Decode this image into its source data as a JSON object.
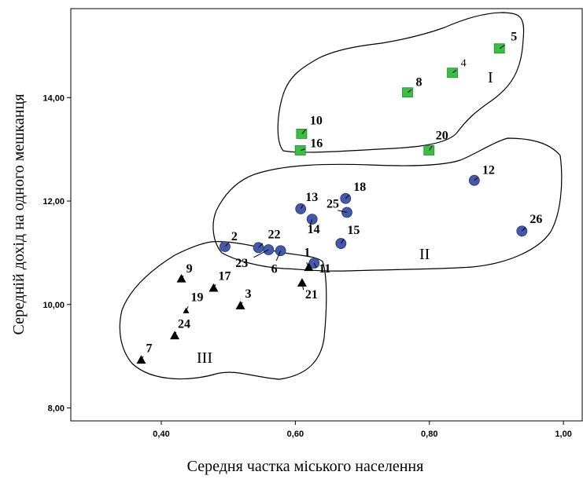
{
  "chart_data": {
    "type": "scatter",
    "xlabel": "Середня частка міського населення",
    "ylabel": "Середній дохід на одного мешканця",
    "xlim": [
      0.265,
      1.028
    ],
    "ylim": [
      7.75,
      15.72
    ],
    "x_ticks": [
      "0,40",
      "0,60",
      "0,80",
      "1,00"
    ],
    "x_tick_values": [
      0.4,
      0.6,
      0.8,
      1.0
    ],
    "y_ticks": [
      "8,00",
      "10,00",
      "12,00",
      "14,00"
    ],
    "y_tick_values": [
      8,
      10,
      12,
      14
    ],
    "grid": false,
    "series": [
      {
        "marker": "square",
        "color": "#3dbd45",
        "points": [
          {
            "id": "5",
            "x": 0.905,
            "y": 14.95
          },
          {
            "id": "4",
            "x": 0.835,
            "y": 14.48
          },
          {
            "id": "8",
            "x": 0.768,
            "y": 14.1
          },
          {
            "id": "10",
            "x": 0.61,
            "y": 13.3
          },
          {
            "id": "16",
            "x": 0.608,
            "y": 12.98
          },
          {
            "id": "20",
            "x": 0.8,
            "y": 12.98
          }
        ]
      },
      {
        "marker": "circle",
        "color": "#4559a8",
        "points": [
          {
            "id": "12",
            "x": 0.867,
            "y": 12.4
          },
          {
            "id": "26",
            "x": 0.938,
            "y": 11.42
          },
          {
            "id": "18",
            "x": 0.675,
            "y": 12.05
          },
          {
            "id": "13",
            "x": 0.608,
            "y": 11.85
          },
          {
            "id": "25",
            "x": 0.677,
            "y": 11.78
          },
          {
            "id": "14",
            "x": 0.625,
            "y": 11.65
          },
          {
            "id": "15",
            "x": 0.668,
            "y": 11.18
          },
          {
            "id": "2",
            "x": 0.495,
            "y": 11.12
          },
          {
            "id": "22",
            "x": 0.545,
            "y": 11.1
          },
          {
            "id": "23",
            "x": 0.56,
            "y": 11.06
          },
          {
            "id": "6",
            "x": 0.578,
            "y": 11.04
          },
          {
            "id": "11",
            "x": 0.628,
            "y": 10.8
          }
        ]
      },
      {
        "marker": "triangle",
        "color": "#000000",
        "points": [
          {
            "id": "1",
            "x": 0.62,
            "y": 10.72
          },
          {
            "id": "21",
            "x": 0.61,
            "y": 10.42
          },
          {
            "id": "9",
            "x": 0.43,
            "y": 10.5
          },
          {
            "id": "17",
            "x": 0.478,
            "y": 10.32
          },
          {
            "id": "3",
            "x": 0.518,
            "y": 9.98
          },
          {
            "id": "19",
            "x": 0.437,
            "y": 9.88
          },
          {
            "id": "24",
            "x": 0.42,
            "y": 9.4
          },
          {
            "id": "7",
            "x": 0.37,
            "y": 8.93
          }
        ]
      }
    ],
    "clusters": [
      "I",
      "II",
      "III"
    ]
  }
}
